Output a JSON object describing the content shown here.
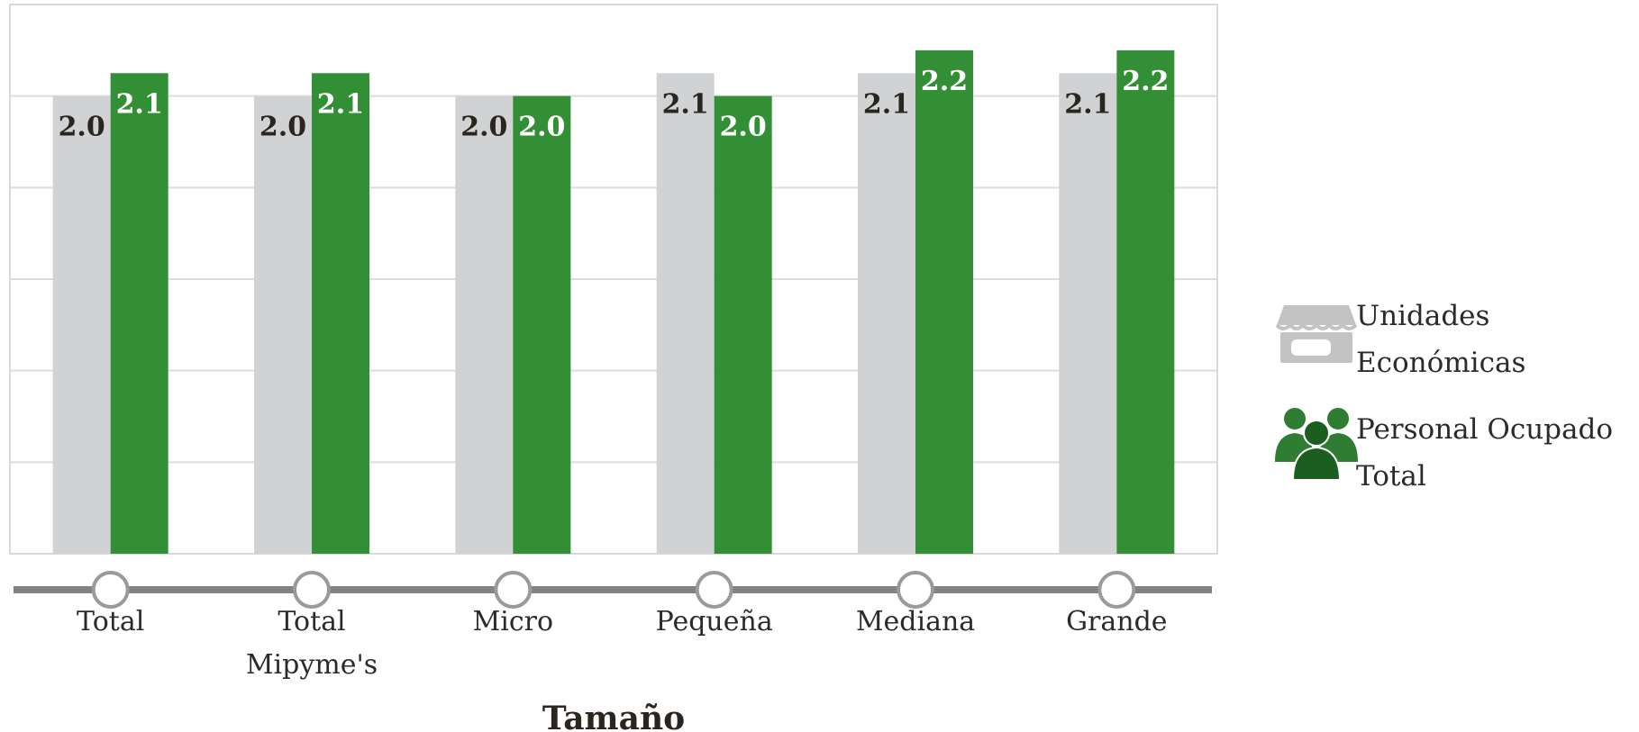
{
  "chart_data": {
    "type": "bar",
    "categories": [
      "Total",
      "Total\nMipyme's",
      "Micro",
      "Pequeña",
      "Mediana",
      "Grande"
    ],
    "series": [
      {
        "name": "Unidades Económicas",
        "values": [
          2.0,
          2.0,
          2.0,
          2.1,
          2.1,
          2.1
        ],
        "color": "#d0d2d3",
        "label_color": "#2b2520"
      },
      {
        "name": "Personal Ocupado Total",
        "values": [
          2.1,
          2.1,
          2.0,
          2.0,
          2.2,
          2.2
        ],
        "color": "#338f36",
        "label_color": "#ffffff"
      }
    ],
    "title": "",
    "xlabel": "Tamaño",
    "ylabel": "",
    "ylim": [
      0,
      2.4
    ],
    "grid": true,
    "legend_position": "right",
    "legend": [
      {
        "label": "Unidades Económicas",
        "icon": "storefront-icon"
      },
      {
        "label": "Personal Ocupado Total",
        "icon": "people-group-icon"
      }
    ]
  }
}
